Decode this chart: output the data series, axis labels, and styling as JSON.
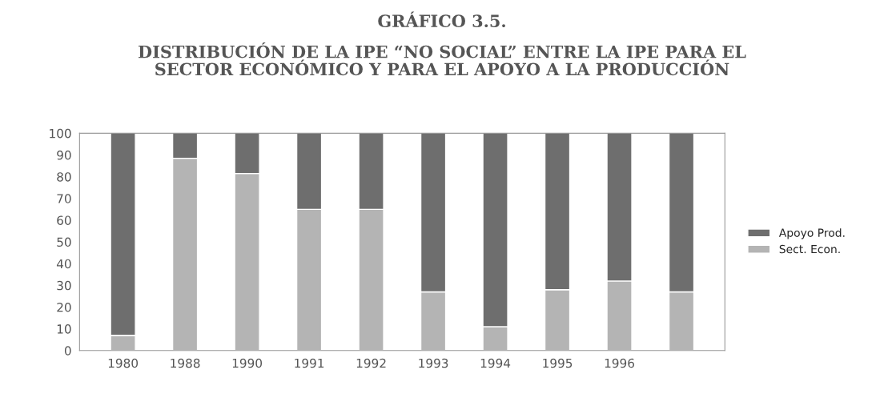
{
  "chart_data": {
    "type": "bar",
    "title": "GRÁFICO 3.5.",
    "subtitle": "DISTRIBUCIÓN DE LA IPE “NO SOCIAL” ENTRE LA IPE PARA EL\nSECTOR ECONÓMICO Y PARA EL APOYO A LA PRODUCCIÓN",
    "categories": [
      "1980",
      "1988",
      "1990",
      "1991",
      "1992",
      "1993",
      "1994",
      "1995",
      "1996",
      null
    ],
    "stacked": true,
    "series": [
      {
        "name": "Sect. Econ.",
        "color": "#b4b4b4",
        "values": [
          7,
          88.5,
          81.5,
          65,
          65,
          27,
          11,
          28,
          32,
          27
        ]
      },
      {
        "name": "Apoyo Prod.",
        "color": "#6e6e6e",
        "values": [
          93,
          11.5,
          18.5,
          35,
          35,
          73,
          89,
          72,
          68,
          73
        ]
      }
    ],
    "ylim": [
      0,
      100
    ],
    "yticks": [
      0,
      10,
      20,
      30,
      40,
      50,
      60,
      70,
      80,
      90,
      100
    ],
    "grid": false,
    "legend": "right"
  }
}
